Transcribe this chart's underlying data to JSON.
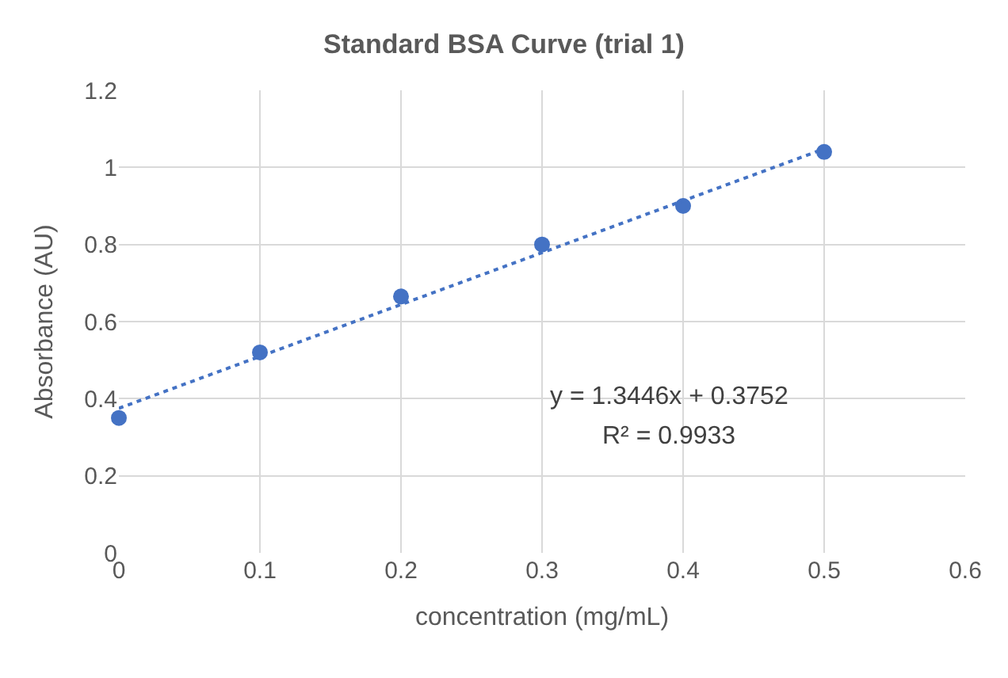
{
  "chart_data": {
    "type": "scatter",
    "title": "Standard BSA Curve (trial 1)",
    "xlabel": "concentration (mg/mL)",
    "ylabel": "Absorbance (AU)",
    "series": [
      {
        "color": "#4472c4",
        "marker": "circle",
        "x": [
          0,
          0.1,
          0.2,
          0.3,
          0.4,
          0.5
        ],
        "values": [
          0.35,
          0.52,
          0.665,
          0.8,
          0.9,
          1.04
        ]
      },
      {
        "type": "line",
        "color": "#4472c4",
        "marker": "none",
        "line_style": "dotted",
        "x": [
          0,
          0.5
        ],
        "values": [
          0.375,
          1.048
        ]
      }
    ],
    "annotations": [
      "y = 1.3446x + 0.3752",
      "R² = 0.9933"
    ],
    "xlim": [
      0,
      0.6
    ],
    "xticks": [
      0,
      0.1,
      0.2,
      0.3,
      0.4,
      0.5,
      0.6
    ],
    "ylim": [
      0,
      1.2
    ],
    "yticks": [
      0,
      0.2,
      0.4,
      0.6,
      0.8,
      1,
      1.2
    ],
    "grid": true
  }
}
